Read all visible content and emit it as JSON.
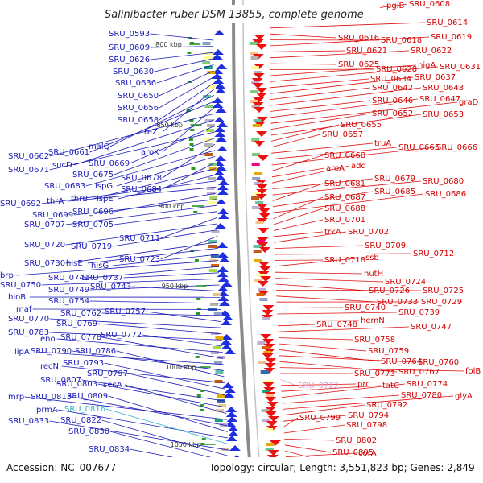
{
  "title": "Salinibacter ruber DSM 13855, complete genome",
  "accession": "Accession: NC_007677",
  "topology": "Topology: circular; Length: 3,551,823 bp; Genes: 2,849",
  "colors": {
    "left_label": "#1a1ab8",
    "right_label": "#d40000",
    "backbone": "#8a8a8a",
    "scale": "#1a8a1a"
  },
  "scale_ticks": [
    {
      "label": "800 kbp"
    },
    {
      "label": "850 kbp"
    },
    {
      "label": "900 kbp"
    },
    {
      "label": "950 kbp"
    },
    {
      "label": "1000 kbp"
    },
    {
      "label": "1050 kbp"
    }
  ],
  "left_labels": [
    {
      "text": "SRU_0593"
    },
    {
      "text": "SRU_0609"
    },
    {
      "text": "SRU_0626"
    },
    {
      "text": "SRU_0630"
    },
    {
      "text": "SRU_0636"
    },
    {
      "text": "SRU_0650"
    },
    {
      "text": "SRU_0656"
    },
    {
      "text": "SRU_0658"
    },
    {
      "text": "treZ"
    },
    {
      "text": "malQ"
    },
    {
      "text": "SRU_0661"
    },
    {
      "text": "aroK"
    },
    {
      "text": "SRU_0662"
    },
    {
      "text": "sucD"
    },
    {
      "text": "SRU_0669"
    },
    {
      "text": "SRU_0671"
    },
    {
      "text": "SRU_0675"
    },
    {
      "text": "SRU_0678"
    },
    {
      "text": "SRU_0683"
    },
    {
      "text": "ispG"
    },
    {
      "text": "SRU_0684"
    },
    {
      "text": "thrB"
    },
    {
      "text": "ispE"
    },
    {
      "text": "SRU_0692"
    },
    {
      "text": "thrA"
    },
    {
      "text": "SRU_0696"
    },
    {
      "text": "SRU_0699"
    },
    {
      "text": "SRU_0707"
    },
    {
      "text": "SRU_0705"
    },
    {
      "text": "SRU_0711"
    },
    {
      "text": "SRU_0720"
    },
    {
      "text": "SRU_0719"
    },
    {
      "text": "SRU_0723"
    },
    {
      "text": "SRU_0730"
    },
    {
      "text": "hisE"
    },
    {
      "text": "hisG"
    },
    {
      "text": "brp"
    },
    {
      "text": "SRU_0741"
    },
    {
      "text": "SRU_0737"
    },
    {
      "text": "SRU_0750"
    },
    {
      "text": "SRU_0749"
    },
    {
      "text": "SRU_0743"
    },
    {
      "text": "bioB"
    },
    {
      "text": "SRU_0754"
    },
    {
      "text": "maf"
    },
    {
      "text": "SRU_0762"
    },
    {
      "text": "SRU_0757"
    },
    {
      "text": "SRU_0770"
    },
    {
      "text": "SRU_0769"
    },
    {
      "text": "SRU_0783"
    },
    {
      "text": "SRU_0772"
    },
    {
      "text": "eno"
    },
    {
      "text": "SRU_0778"
    },
    {
      "text": "lipA"
    },
    {
      "text": "SRU_0790"
    },
    {
      "text": "SRU_0786"
    },
    {
      "text": "recN"
    },
    {
      "text": "SRU_0793"
    },
    {
      "text": "SRU_0797"
    },
    {
      "text": "SRU_0807"
    },
    {
      "text": "SRU_0803"
    },
    {
      "text": "secA"
    },
    {
      "text": "mrp"
    },
    {
      "text": "SRU_0813"
    },
    {
      "text": "SRU_0809"
    },
    {
      "text": "prmA"
    },
    {
      "text": "SRU_0816",
      "cyan": true
    },
    {
      "text": "SRU_0833"
    },
    {
      "text": "SRU_0822"
    },
    {
      "text": "SRU_0830"
    },
    {
      "text": "SRU_0834"
    }
  ],
  "right_labels": [
    {
      "text": "pgiB"
    },
    {
      "text": "SRU_0608"
    },
    {
      "text": "SRU_0614"
    },
    {
      "text": "SRU_0616"
    },
    {
      "text": "SRU_0618"
    },
    {
      "text": "SRU_0619"
    },
    {
      "text": "SRU_0621"
    },
    {
      "text": "SRU_0622"
    },
    {
      "text": "SRU_0625"
    },
    {
      "text": "SRU_0628"
    },
    {
      "text": "higA"
    },
    {
      "text": "SRU_0631"
    },
    {
      "text": "SRU_0634"
    },
    {
      "text": "SRU_0637"
    },
    {
      "text": "SRU_0642"
    },
    {
      "text": "SRU_0643"
    },
    {
      "text": "SRU_0646"
    },
    {
      "text": "SRU_0647"
    },
    {
      "text": "graD"
    },
    {
      "text": "SRU_0652"
    },
    {
      "text": "SRU_0653"
    },
    {
      "text": "SRU_0655"
    },
    {
      "text": "SRU_0657"
    },
    {
      "text": "truA"
    },
    {
      "text": "SRU_0665"
    },
    {
      "text": "SRU_0666"
    },
    {
      "text": "SRU_0668"
    },
    {
      "text": "aroA"
    },
    {
      "text": "add"
    },
    {
      "text": "SRU_0679"
    },
    {
      "text": "SRU_0680"
    },
    {
      "text": "SRU_0681"
    },
    {
      "text": "SRU_0685"
    },
    {
      "text": "SRU_0686"
    },
    {
      "text": "SRU_0687"
    },
    {
      "text": "SRU_0688"
    },
    {
      "text": "SRU_0701"
    },
    {
      "text": "trkA"
    },
    {
      "text": "SRU_0702"
    },
    {
      "text": "SRU_0709"
    },
    {
      "text": "SRU_0712"
    },
    {
      "text": "SRU_0718"
    },
    {
      "text": "ssb"
    },
    {
      "text": "hutH"
    },
    {
      "text": "SRU_0724"
    },
    {
      "text": "SRU_0726"
    },
    {
      "text": "SRU_0725"
    },
    {
      "text": "SRU_0733"
    },
    {
      "text": "SRU_0729"
    },
    {
      "text": "SRU_0740"
    },
    {
      "text": "SRU_0739"
    },
    {
      "text": "hemN"
    },
    {
      "text": "SRU_0748"
    },
    {
      "text": "SRU_0747"
    },
    {
      "text": "SRU_0758"
    },
    {
      "text": "SRU_0759"
    },
    {
      "text": "SRU_0764"
    },
    {
      "text": "SRU_0760"
    },
    {
      "text": "SRU_0767"
    },
    {
      "text": "folB"
    },
    {
      "text": "SRU_0773"
    },
    {
      "text": "SRU_0782",
      "pink": true
    },
    {
      "text": "prc"
    },
    {
      "text": "tatC"
    },
    {
      "text": "SRU_0774"
    },
    {
      "text": "SRU_0780"
    },
    {
      "text": "glyA"
    },
    {
      "text": "SRU_0792"
    },
    {
      "text": "SRU_0794"
    },
    {
      "text": "SRU_0799"
    },
    {
      "text": "SRU_0798"
    },
    {
      "text": "SRU_0802"
    },
    {
      "text": "SRU_0805"
    },
    {
      "text": "SRU_0810"
    },
    {
      "text": "corA"
    }
  ]
}
